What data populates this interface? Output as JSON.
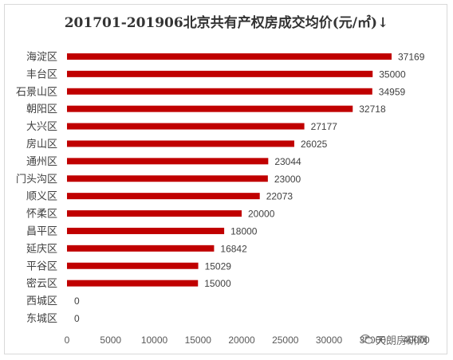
{
  "chart_data": {
    "type": "bar",
    "orientation": "horizontal",
    "title": "201701-201906北京共有产权房成交均价(元/㎡)↓",
    "categories": [
      "海淀区",
      "丰台区",
      "石景山区",
      "朝阳区",
      "大兴区",
      "房山区",
      "通州区",
      "门头沟区",
      "顺义区",
      "怀柔区",
      "昌平区",
      "延庆区",
      "平谷区",
      "密云区",
      "西城区",
      "东城区"
    ],
    "values": [
      37169,
      35000,
      34959,
      32718,
      27177,
      26025,
      23044,
      23000,
      22073,
      20000,
      18000,
      16842,
      15029,
      15000,
      0,
      0
    ],
    "data_labels": [
      "37169",
      "35000",
      "34959",
      "32718",
      "27177",
      "26025",
      "23044",
      "23000",
      "22073",
      "20000",
      "18000",
      "16842",
      "15029",
      "15000",
      "0",
      "0"
    ],
    "x_ticks": [
      "0",
      "5000",
      "10000",
      "15000",
      "20000",
      "25000",
      "30000",
      "35000",
      "40000"
    ],
    "xlim": [
      0,
      40000
    ],
    "grid": false,
    "bar_color": "#c00000",
    "xlabel": "",
    "ylabel": ""
  },
  "watermark": {
    "text": "天朗房研网",
    "icon": "wechat-icon"
  }
}
